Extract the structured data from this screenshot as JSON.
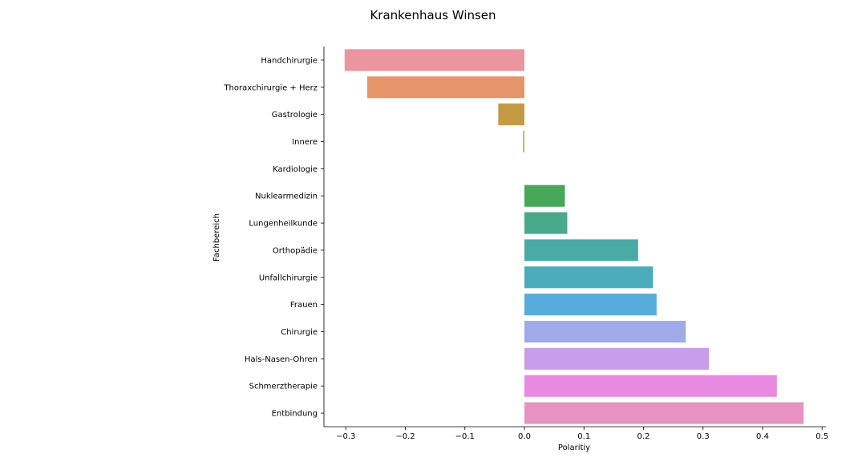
{
  "chart_data": {
    "type": "bar",
    "orientation": "horizontal",
    "title": "Krankenhaus Winsen",
    "xlabel": "Polaritiy",
    "ylabel": "Fachbereich",
    "xlim": [
      -0.34,
      0.505
    ],
    "xticks": [
      -0.3,
      -0.2,
      -0.1,
      0.0,
      0.1,
      0.2,
      0.3,
      0.4,
      0.5
    ],
    "xtick_labels": [
      "−0.3",
      "−0.2",
      "−0.1",
      "0.0",
      "0.1",
      "0.2",
      "0.3",
      "0.4",
      "0.5"
    ],
    "grid": false,
    "categories": [
      "Handchirurgie",
      "Thoraxchirurgie + Herz",
      "Gastrologie",
      "Innere",
      "Kardiologie",
      "Nuklearmedizin",
      "Lungenheilkunde",
      "Orthopädie",
      "Unfallchirurgie",
      "Frauen",
      "Chirurgie",
      "Hals-Nasen-Ohren",
      "Schmerztherapie",
      "Entbindung"
    ],
    "values": [
      -0.302,
      -0.264,
      -0.044,
      -0.002,
      0.0,
      0.068,
      0.072,
      0.191,
      0.216,
      0.222,
      0.271,
      0.31,
      0.424,
      0.469
    ],
    "colors": [
      "#eb95a0",
      "#e6956a",
      "#c59a45",
      "#a9a248",
      "#8aab48",
      "#47a85a",
      "#49a98a",
      "#4aaba4",
      "#4badbc",
      "#56addb",
      "#a1aae8",
      "#c89eea",
      "#e88ae2",
      "#e892c4"
    ]
  }
}
